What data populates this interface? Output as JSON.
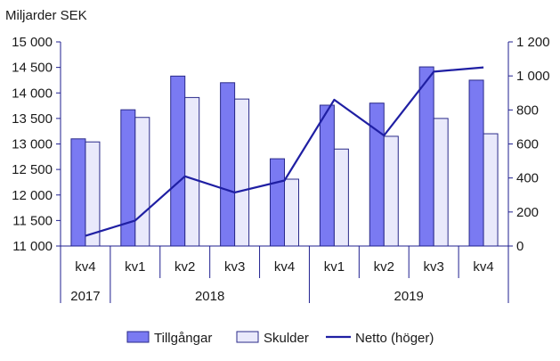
{
  "chart_data": {
    "type": "bar",
    "unit_label": "Miljarder SEK",
    "categories": [
      "kv4",
      "kv1",
      "kv2",
      "kv3",
      "kv4",
      "kv1",
      "kv2",
      "kv3",
      "kv4"
    ],
    "year_groups": [
      {
        "label": "2017",
        "span": 1
      },
      {
        "label": "2018",
        "span": 4
      },
      {
        "label": "2019",
        "span": 4
      }
    ],
    "series": [
      {
        "name": "Tillgångar",
        "type": "bar",
        "axis": "left",
        "color": "#7a7af2",
        "values": [
          13100,
          13670,
          14330,
          14200,
          12710,
          13760,
          13800,
          14510,
          14250
        ]
      },
      {
        "name": "Skulder",
        "type": "bar",
        "axis": "left",
        "color": "#e9e9fb",
        "values": [
          13040,
          13520,
          13910,
          13880,
          12310,
          12900,
          13150,
          13500,
          13200
        ]
      },
      {
        "name": "Netto (höger)",
        "type": "line",
        "axis": "right",
        "color": "#1f1fa3",
        "values": [
          60,
          150,
          410,
          315,
          385,
          860,
          650,
          1025,
          1050
        ]
      }
    ],
    "left_axis": {
      "min": 11000,
      "max": 15000,
      "step": 500,
      "tick_labels": [
        "11 000",
        "11 500",
        "12 000",
        "12 500",
        "13 000",
        "13 500",
        "14 000",
        "14 500",
        "15 000"
      ]
    },
    "right_axis": {
      "min": 0,
      "max": 1200,
      "step": 200,
      "tick_labels": [
        "0",
        "200",
        "400",
        "600",
        "800",
        "1 000",
        "1 200"
      ]
    },
    "grid": false,
    "legend_position": "bottom",
    "axis_color": "#1f1f8f"
  }
}
